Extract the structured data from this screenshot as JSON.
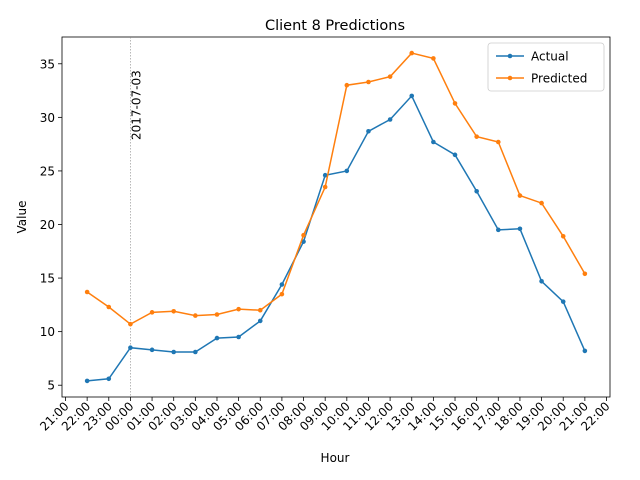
{
  "chart_data": {
    "type": "line",
    "title": "Client 8 Predictions",
    "xlabel": "Hour",
    "ylabel": "Value",
    "x_ticks": [
      "21:00",
      "22:00",
      "23:00",
      "00:00",
      "01:00",
      "02:00",
      "03:00",
      "04:00",
      "05:00",
      "06:00",
      "07:00",
      "08:00",
      "09:00",
      "10:00",
      "11:00",
      "12:00",
      "13:00",
      "14:00",
      "15:00",
      "16:00",
      "17:00",
      "18:00",
      "19:00",
      "20:00",
      "21:00",
      "22:00"
    ],
    "x": [
      "22:00",
      "23:00",
      "00:00",
      "01:00",
      "02:00",
      "03:00",
      "04:00",
      "05:00",
      "06:00",
      "07:00",
      "08:00",
      "09:00",
      "10:00",
      "11:00",
      "12:00",
      "13:00",
      "14:00",
      "15:00",
      "16:00",
      "17:00",
      "18:00",
      "19:00",
      "20:00",
      "21:00"
    ],
    "x_range": [
      "21:00",
      "22:00"
    ],
    "y_ticks": [
      5,
      10,
      15,
      20,
      25,
      30,
      35
    ],
    "ylim": [
      3.9,
      37.5
    ],
    "series": [
      {
        "name": "Actual",
        "color": "#1f77b4",
        "values": [
          5.4,
          5.6,
          8.5,
          8.3,
          8.1,
          8.1,
          9.4,
          9.5,
          11.0,
          14.4,
          18.4,
          24.6,
          25.0,
          28.7,
          29.8,
          32.0,
          27.7,
          26.5,
          23.1,
          19.5,
          19.6,
          14.7,
          12.8,
          8.2
        ]
      },
      {
        "name": "Predicted",
        "color": "#ff7f0e",
        "values": [
          13.7,
          12.3,
          10.7,
          11.8,
          11.9,
          11.5,
          11.6,
          12.1,
          12.0,
          13.5,
          19.0,
          23.5,
          33.0,
          33.3,
          33.8,
          36.0,
          35.5,
          31.3,
          28.2,
          27.7,
          22.7,
          22.0,
          18.9,
          15.4
        ]
      }
    ],
    "annotation": {
      "text": "2017-07-03",
      "at": "00:00"
    },
    "legend_position": "top-right",
    "grid": false
  }
}
